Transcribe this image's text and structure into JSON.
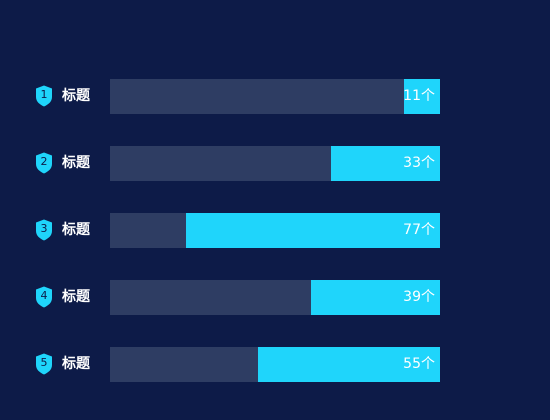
{
  "chart_data": {
    "type": "bar",
    "orientation": "horizontal",
    "categories": [
      "标题",
      "标题",
      "标题",
      "标题",
      "标题"
    ],
    "ranks": [
      "1",
      "2",
      "3",
      "4",
      "5"
    ],
    "values": [
      11,
      33,
      77,
      39,
      55
    ],
    "value_labels": [
      "11个",
      "33个",
      "77个",
      "39个",
      "55个"
    ],
    "xlim": [
      0,
      100
    ],
    "title": "",
    "xlabel": "",
    "ylabel": "",
    "grid": false,
    "legend": "none"
  },
  "colors": {
    "background": "#0d1b48",
    "track": "#2e3d63",
    "fill": "#1fd5fb",
    "badge": "#1fd5fb",
    "label_text": "#ffffff"
  },
  "icons": {
    "rank_badge": "shield-icon"
  }
}
